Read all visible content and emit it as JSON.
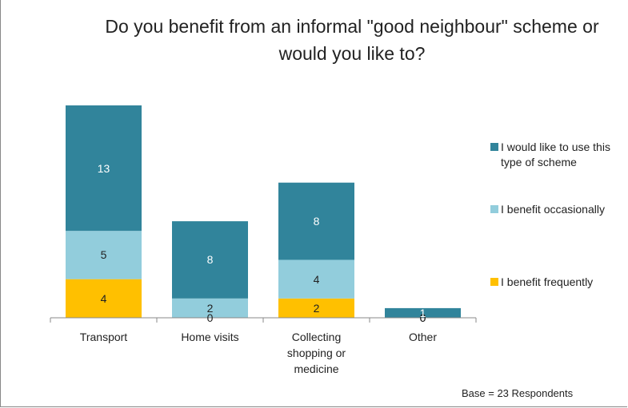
{
  "chart_data": {
    "type": "stacked_bar",
    "title": "Do you benefit from an informal \"good neighbour\" scheme or would you like to?",
    "categories": [
      "Transport",
      "Home visits",
      "Collecting shopping or medicine",
      "Other"
    ],
    "series": [
      {
        "name": "I benefit frequently",
        "color": "#ffc000",
        "values": [
          4,
          0,
          2,
          0
        ]
      },
      {
        "name": "I benefit occasionally",
        "color": "#92cddc",
        "values": [
          5,
          2,
          4,
          0
        ]
      },
      {
        "name": "I would like to use this type of scheme",
        "color": "#31849b",
        "values": [
          13,
          8,
          8,
          1
        ]
      }
    ],
    "annotation": "Base = 23 Respondents",
    "legend": "right"
  }
}
